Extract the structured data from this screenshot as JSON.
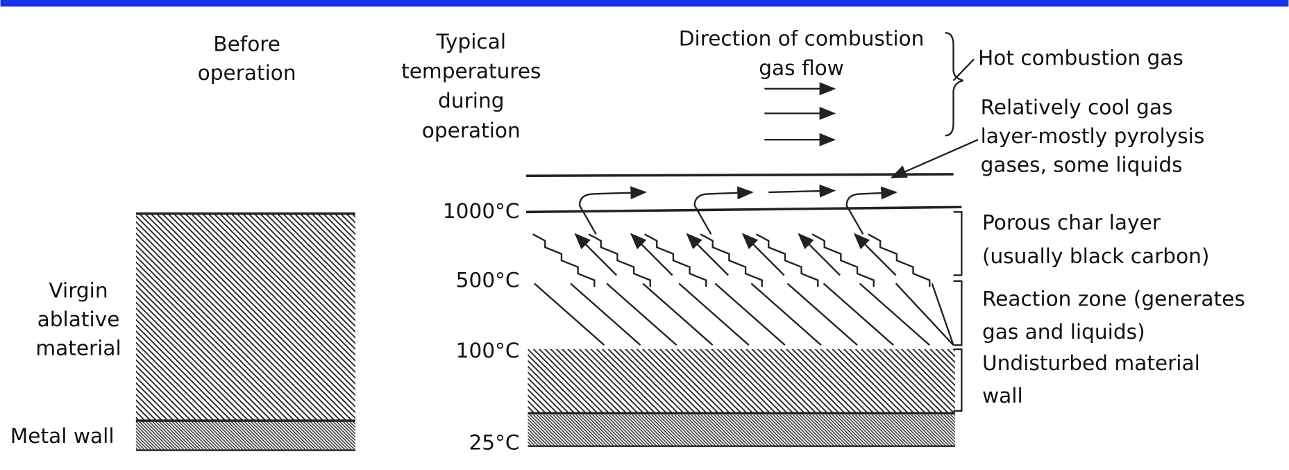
{
  "headings": {
    "before": [
      "Before",
      "operation"
    ],
    "temperatures": [
      "Typical",
      "temperatures",
      "during",
      "operation"
    ],
    "flow": [
      "Direction of combustion",
      "gas flow"
    ]
  },
  "left": {
    "virgin": [
      "Virgin",
      "ablative",
      "material"
    ],
    "metal": "Metal wall"
  },
  "temperatures": [
    "1000°C",
    "500°C",
    "100°C",
    "25°C"
  ],
  "zones": {
    "hot_gas": [
      "Hot combustion gas"
    ],
    "cool_gas": [
      "Relatively cool gas",
      "layer-mostly pyrolysis",
      "gases, some liquids"
    ],
    "char": [
      "Porous char layer",
      "(usually black carbon)"
    ],
    "reaction": [
      "Reaction zone (generates",
      "gas and liquids)"
    ],
    "undisturbed": [
      "Undisturbed material",
      "wall"
    ]
  }
}
